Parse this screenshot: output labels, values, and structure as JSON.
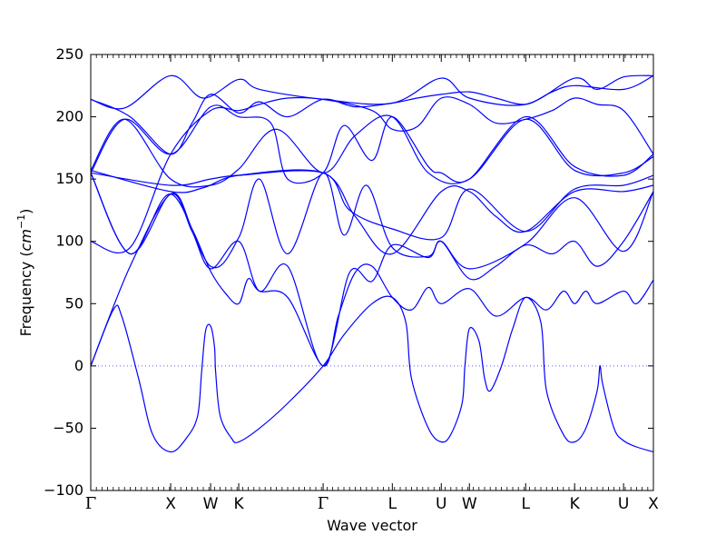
{
  "chart_data": {
    "type": "line",
    "title": "",
    "xlabel": "Wave vector",
    "ylabel_prefix": "Frequency (",
    "ylabel_unit": "cm",
    "ylabel_exp": "−1",
    "ylabel_suffix": ")",
    "ylim": [
      -100,
      250
    ],
    "xlim": [
      0,
      1
    ],
    "yticks": [
      -100,
      -50,
      0,
      50,
      100,
      150,
      200,
      250
    ],
    "line_color": "#0000ff",
    "zero_line_color": "#5555ff",
    "grid": false,
    "qpoints": [
      {
        "label": "Γ",
        "x": 0.0
      },
      {
        "label": "X",
        "x": 0.142
      },
      {
        "label": "W",
        "x": 0.213
      },
      {
        "label": "K",
        "x": 0.263
      },
      {
        "label": "Γ",
        "x": 0.413
      },
      {
        "label": "L",
        "x": 0.536
      },
      {
        "label": "U",
        "x": 0.623
      },
      {
        "label": "W",
        "x": 0.673
      },
      {
        "label": "L",
        "x": 0.773
      },
      {
        "label": "K",
        "x": 0.86
      },
      {
        "label": "U",
        "x": 0.947
      },
      {
        "label": "X",
        "x": 1.0
      }
    ],
    "series": [
      {
        "points": [
          [
            0,
            0
          ],
          [
            0.04,
            45
          ],
          [
            0.055,
            40
          ],
          [
            0.085,
            -10
          ],
          [
            0.11,
            -55
          ],
          [
            0.142,
            -69
          ],
          [
            0.17,
            -58
          ],
          [
            0.19,
            -40
          ],
          [
            0.197,
            -5
          ],
          [
            0.204,
            28
          ],
          [
            0.213,
            32
          ],
          [
            0.22,
            15
          ],
          [
            0.222,
            -5
          ],
          [
            0.23,
            -40
          ],
          [
            0.25,
            -58
          ],
          [
            0.263,
            -61
          ],
          [
            0.3,
            -50
          ],
          [
            0.35,
            -30
          ],
          [
            0.413,
            0
          ],
          [
            0.45,
            25
          ],
          [
            0.5,
            50
          ],
          [
            0.536,
            55
          ],
          [
            0.56,
            35
          ],
          [
            0.57,
            -10
          ],
          [
            0.6,
            -50
          ],
          [
            0.623,
            -61
          ],
          [
            0.64,
            -55
          ],
          [
            0.66,
            -30
          ],
          [
            0.665,
            0
          ],
          [
            0.673,
            30
          ],
          [
            0.69,
            20
          ],
          [
            0.7,
            -10
          ],
          [
            0.71,
            -20
          ],
          [
            0.73,
            0
          ],
          [
            0.75,
            30
          ],
          [
            0.773,
            55
          ],
          [
            0.8,
            35
          ],
          [
            0.81,
            -20
          ],
          [
            0.84,
            -55
          ],
          [
            0.86,
            -61
          ],
          [
            0.88,
            -50
          ],
          [
            0.9,
            -20
          ],
          [
            0.905,
            0
          ],
          [
            0.91,
            -15
          ],
          [
            0.93,
            -50
          ],
          [
            0.947,
            -60
          ],
          [
            0.97,
            -65
          ],
          [
            1.0,
            -69
          ]
        ]
      },
      {
        "points": [
          [
            0,
            0
          ],
          [
            0.07,
            80
          ],
          [
            0.142,
            138
          ],
          [
            0.18,
            110
          ],
          [
            0.213,
            76
          ],
          [
            0.24,
            58
          ],
          [
            0.263,
            50
          ],
          [
            0.28,
            70
          ],
          [
            0.3,
            60
          ],
          [
            0.35,
            55
          ],
          [
            0.413,
            0
          ],
          [
            0.44,
            40
          ],
          [
            0.47,
            75
          ],
          [
            0.5,
            80
          ],
          [
            0.536,
            55
          ],
          [
            0.57,
            45
          ],
          [
            0.6,
            63
          ],
          [
            0.623,
            50
          ],
          [
            0.673,
            62
          ],
          [
            0.72,
            40
          ],
          [
            0.773,
            55
          ],
          [
            0.81,
            45
          ],
          [
            0.84,
            60
          ],
          [
            0.86,
            50
          ],
          [
            0.88,
            60
          ],
          [
            0.9,
            50
          ],
          [
            0.947,
            60
          ],
          [
            0.97,
            50
          ],
          [
            1.0,
            69
          ]
        ]
      },
      {
        "points": [
          [
            0,
            155
          ],
          [
            0.07,
            90
          ],
          [
            0.142,
            138
          ],
          [
            0.18,
            108
          ],
          [
            0.213,
            78
          ],
          [
            0.263,
            100
          ],
          [
            0.3,
            60
          ],
          [
            0.35,
            80
          ],
          [
            0.413,
            0
          ],
          [
            0.46,
            75
          ],
          [
            0.5,
            68
          ],
          [
            0.536,
            97
          ],
          [
            0.6,
            87
          ],
          [
            0.623,
            100
          ],
          [
            0.673,
            70
          ],
          [
            0.72,
            80
          ],
          [
            0.773,
            97
          ],
          [
            0.82,
            90
          ],
          [
            0.86,
            100
          ],
          [
            0.9,
            80
          ],
          [
            0.947,
            100
          ],
          [
            1.0,
            140
          ]
        ]
      },
      {
        "points": [
          [
            0,
            155
          ],
          [
            0.07,
            90
          ],
          [
            0.142,
            138
          ],
          [
            0.213,
            80
          ],
          [
            0.263,
            103
          ],
          [
            0.3,
            150
          ],
          [
            0.35,
            90
          ],
          [
            0.413,
            155
          ],
          [
            0.45,
            105
          ],
          [
            0.49,
            145
          ],
          [
            0.536,
            95
          ],
          [
            0.6,
            88
          ],
          [
            0.623,
            100
          ],
          [
            0.673,
            78
          ],
          [
            0.773,
            98
          ],
          [
            0.86,
            135
          ],
          [
            0.947,
            92
          ],
          [
            1.0,
            140
          ]
        ]
      },
      {
        "points": [
          [
            0,
            157
          ],
          [
            0.142,
            140
          ],
          [
            0.2,
            143
          ],
          [
            0.263,
            153
          ],
          [
            0.413,
            155
          ],
          [
            0.47,
            120
          ],
          [
            0.536,
            90
          ],
          [
            0.623,
            140
          ],
          [
            0.673,
            140
          ],
          [
            0.72,
            120
          ],
          [
            0.773,
            108
          ],
          [
            0.86,
            140
          ],
          [
            0.947,
            140
          ],
          [
            1.0,
            145
          ]
        ]
      },
      {
        "points": [
          [
            0,
            155
          ],
          [
            0.142,
            145
          ],
          [
            0.213,
            150
          ],
          [
            0.263,
            153
          ],
          [
            0.413,
            155
          ],
          [
            0.46,
            125
          ],
          [
            0.536,
            110
          ],
          [
            0.623,
            103
          ],
          [
            0.673,
            142
          ],
          [
            0.773,
            108
          ],
          [
            0.86,
            142
          ],
          [
            0.947,
            145
          ],
          [
            1.0,
            153
          ]
        ]
      },
      {
        "points": [
          [
            0,
            214
          ],
          [
            0.06,
            207
          ],
          [
            0.142,
            233
          ],
          [
            0.2,
            215
          ],
          [
            0.263,
            230
          ],
          [
            0.3,
            222
          ],
          [
            0.413,
            214
          ],
          [
            0.536,
            211
          ],
          [
            0.623,
            231
          ],
          [
            0.673,
            215
          ],
          [
            0.773,
            210
          ],
          [
            0.86,
            231
          ],
          [
            0.9,
            222
          ],
          [
            0.947,
            232
          ],
          [
            1.0,
            233
          ]
        ]
      },
      {
        "points": [
          [
            0,
            214
          ],
          [
            0.07,
            200
          ],
          [
            0.142,
            170
          ],
          [
            0.18,
            195
          ],
          [
            0.213,
            218
          ],
          [
            0.263,
            203
          ],
          [
            0.3,
            212
          ],
          [
            0.35,
            200
          ],
          [
            0.413,
            214
          ],
          [
            0.47,
            208
          ],
          [
            0.536,
            211
          ],
          [
            0.58,
            215
          ],
          [
            0.623,
            218
          ],
          [
            0.673,
            220
          ],
          [
            0.72,
            215
          ],
          [
            0.773,
            210
          ],
          [
            0.82,
            220
          ],
          [
            0.86,
            225
          ],
          [
            0.947,
            222
          ],
          [
            1.0,
            233
          ]
        ]
      },
      {
        "points": [
          [
            0,
            155
          ],
          [
            0.06,
            198
          ],
          [
            0.142,
            170
          ],
          [
            0.213,
            208
          ],
          [
            0.263,
            200
          ],
          [
            0.32,
            195
          ],
          [
            0.35,
            150
          ],
          [
            0.413,
            155
          ],
          [
            0.45,
            193
          ],
          [
            0.5,
            165
          ],
          [
            0.536,
            200
          ],
          [
            0.6,
            160
          ],
          [
            0.623,
            155
          ],
          [
            0.673,
            150
          ],
          [
            0.773,
            200
          ],
          [
            0.86,
            160
          ],
          [
            0.947,
            153
          ],
          [
            1.0,
            170
          ]
        ]
      },
      {
        "points": [
          [
            0,
            157
          ],
          [
            0.06,
            198
          ],
          [
            0.142,
            150
          ],
          [
            0.213,
            145
          ],
          [
            0.263,
            158
          ],
          [
            0.33,
            190
          ],
          [
            0.413,
            155
          ],
          [
            0.47,
            185
          ],
          [
            0.536,
            200
          ],
          [
            0.6,
            155
          ],
          [
            0.673,
            150
          ],
          [
            0.773,
            198
          ],
          [
            0.86,
            157
          ],
          [
            0.947,
            155
          ],
          [
            1.0,
            168
          ]
        ]
      },
      {
        "points": [
          [
            0,
            100
          ],
          [
            0.07,
            95
          ],
          [
            0.142,
            170
          ],
          [
            0.213,
            205
          ],
          [
            0.263,
            205
          ],
          [
            0.3,
            210
          ],
          [
            0.35,
            215
          ],
          [
            0.413,
            214
          ],
          [
            0.5,
            205
          ],
          [
            0.536,
            190
          ],
          [
            0.58,
            192
          ],
          [
            0.623,
            215
          ],
          [
            0.673,
            210
          ],
          [
            0.72,
            195
          ],
          [
            0.773,
            198
          ],
          [
            0.82,
            205
          ],
          [
            0.86,
            215
          ],
          [
            0.9,
            210
          ],
          [
            0.947,
            205
          ],
          [
            1.0,
            170
          ]
        ]
      }
    ]
  }
}
